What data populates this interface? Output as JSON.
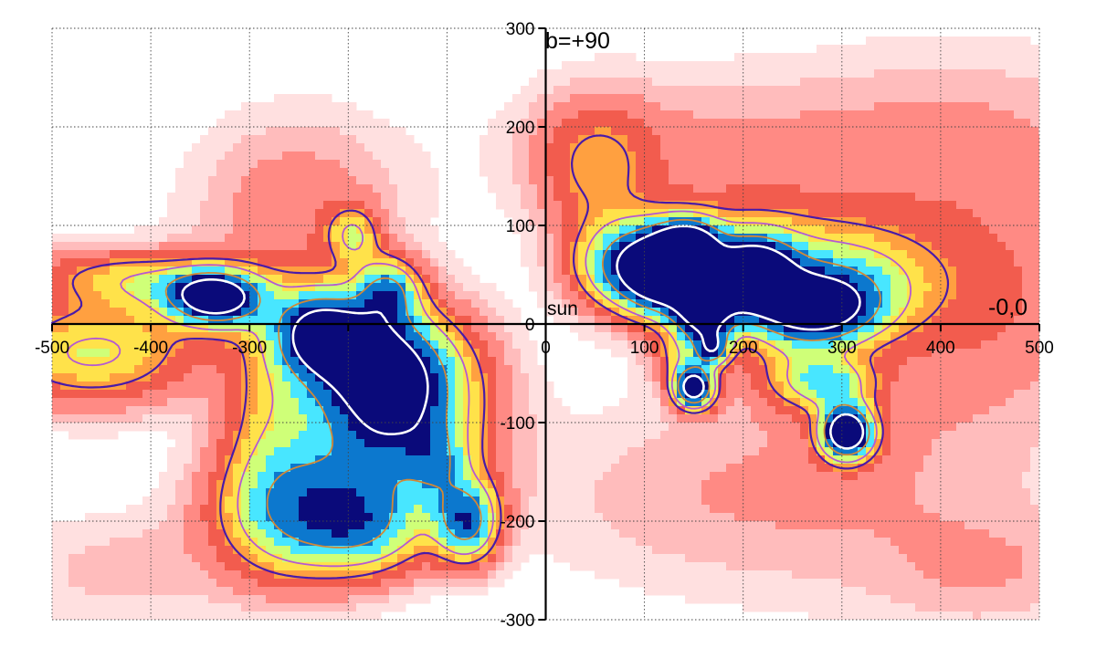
{
  "chart_data": {
    "type": "heatmap",
    "title": "",
    "xlabel": "",
    "ylabel": "",
    "xlim": [
      -500,
      500
    ],
    "ylim": [
      -300,
      300
    ],
    "grid": true,
    "x_ticks": [
      -500,
      -400,
      -300,
      -200,
      -100,
      0,
      100,
      200,
      300,
      400,
      500
    ],
    "y_ticks": [
      -300,
      -200,
      -100,
      0,
      100,
      200,
      300
    ],
    "x_tick_labels": [
      "-500",
      "-400",
      "-300",
      "",
      "",
      "0",
      "100",
      "200",
      "300",
      "400",
      "500"
    ],
    "y_tick_labels": [
      "-300",
      "-200",
      "-100",
      "0",
      "100",
      "200",
      "300"
    ],
    "annotations": {
      "top_label": "b=+90",
      "right_label": "-0,0",
      "origin_label": "sun"
    },
    "colorscale": [
      "#ffffff",
      "#ffe0e0",
      "#ffbcbc",
      "#ff8a84",
      "#f25c4e",
      "#ffa040",
      "#ffe24a",
      "#cfff78",
      "#48e6ff",
      "#0c78ce",
      "#0a0a7a"
    ],
    "contour_colors": {
      "outer": "#4a1aa8",
      "middle": "#b45ad2",
      "inner": "#d08838",
      "core": "#ffffff"
    },
    "blobs": [
      {
        "x": -460,
        "y": -30,
        "sx": 70,
        "sy": 35,
        "amp": 4.2
      },
      {
        "x": -450,
        "y": 50,
        "sx": 60,
        "sy": 20,
        "amp": 2.0
      },
      {
        "x": -380,
        "y": 40,
        "sx": 50,
        "sy": 18,
        "amp": 2.2
      },
      {
        "x": -335,
        "y": 27,
        "sx": 30,
        "sy": 18,
        "amp": 9.5
      },
      {
        "x": -300,
        "y": 20,
        "sx": 90,
        "sy": 30,
        "amp": 1.5
      },
      {
        "x": -250,
        "y": 120,
        "sx": 70,
        "sy": 60,
        "amp": 1.4
      },
      {
        "x": -160,
        "y": 35,
        "sx": 22,
        "sy": 22,
        "amp": 5.5
      },
      {
        "x": -195,
        "y": 90,
        "sx": 18,
        "sy": 20,
        "amp": 3.4
      },
      {
        "x": -230,
        "y": -10,
        "sx": 30,
        "sy": 28,
        "amp": 7.0
      },
      {
        "x": -160,
        "y": -55,
        "sx": 55,
        "sy": 45,
        "amp": 10.0
      },
      {
        "x": -190,
        "y": -20,
        "sx": 40,
        "sy": 30,
        "amp": 3.0
      },
      {
        "x": -150,
        "y": -130,
        "sx": 60,
        "sy": 45,
        "amp": 4.2
      },
      {
        "x": -240,
        "y": -190,
        "sx": 60,
        "sy": 45,
        "amp": 6.0
      },
      {
        "x": -180,
        "y": -210,
        "sx": 45,
        "sy": 30,
        "amp": 3.4
      },
      {
        "x": -80,
        "y": -200,
        "sx": 22,
        "sy": 28,
        "amp": 7.0
      },
      {
        "x": -110,
        "y": -140,
        "sx": 20,
        "sy": 25,
        "amp": 2.5
      },
      {
        "x": -280,
        "y": -100,
        "sx": 35,
        "sy": 80,
        "amp": 2.5
      },
      {
        "x": 50,
        "y": 160,
        "sx": 40,
        "sy": 45,
        "amp": 2.4
      },
      {
        "x": 150,
        "y": 180,
        "sx": 120,
        "sy": 50,
        "amp": 1.0
      },
      {
        "x": 420,
        "y": 170,
        "sx": 120,
        "sy": 70,
        "amp": 1.2
      },
      {
        "x": 440,
        "y": 20,
        "sx": 100,
        "sy": 70,
        "amp": 1.5
      },
      {
        "x": 80,
        "y": 60,
        "sx": 35,
        "sy": 30,
        "amp": 6.0
      },
      {
        "x": 120,
        "y": 50,
        "sx": 28,
        "sy": 28,
        "amp": 9.5
      },
      {
        "x": 145,
        "y": 80,
        "sx": 22,
        "sy": 18,
        "amp": 8.5
      },
      {
        "x": 160,
        "y": 10,
        "sx": 22,
        "sy": 22,
        "amp": 8.5
      },
      {
        "x": 170,
        "y": -25,
        "sx": 12,
        "sy": 12,
        "amp": 5.5
      },
      {
        "x": 210,
        "y": 50,
        "sx": 28,
        "sy": 25,
        "amp": 10.0
      },
      {
        "x": 200,
        "y": 70,
        "sx": 80,
        "sy": 40,
        "amp": 3.0
      },
      {
        "x": 270,
        "y": 15,
        "sx": 45,
        "sy": 25,
        "amp": 9.5
      },
      {
        "x": 310,
        "y": 45,
        "sx": 60,
        "sy": 35,
        "amp": 3.0
      },
      {
        "x": 140,
        "y": -35,
        "sx": 22,
        "sy": 18,
        "amp": 2.5
      },
      {
        "x": 150,
        "y": -65,
        "sx": 14,
        "sy": 14,
        "amp": 10.5
      },
      {
        "x": 290,
        "y": -60,
        "sx": 30,
        "sy": 18,
        "amp": 4.0
      },
      {
        "x": 305,
        "y": -110,
        "sx": 18,
        "sy": 18,
        "amp": 12.0
      },
      {
        "x": 250,
        "y": -50,
        "sx": 35,
        "sy": 25,
        "amp": 2.0
      },
      {
        "x": 330,
        "y": -140,
        "sx": 140,
        "sy": 90,
        "amp": 0.8
      },
      {
        "x": 150,
        "y": -180,
        "sx": 130,
        "sy": 60,
        "amp": 0.6
      },
      {
        "x": -430,
        "y": -250,
        "sx": 80,
        "sy": 40,
        "amp": 0.7
      },
      {
        "x": 450,
        "y": -250,
        "sx": 80,
        "sy": 40,
        "amp": 0.8
      }
    ],
    "contour_levels": [
      2.6,
      4.0,
      6.5,
      9.0
    ]
  }
}
